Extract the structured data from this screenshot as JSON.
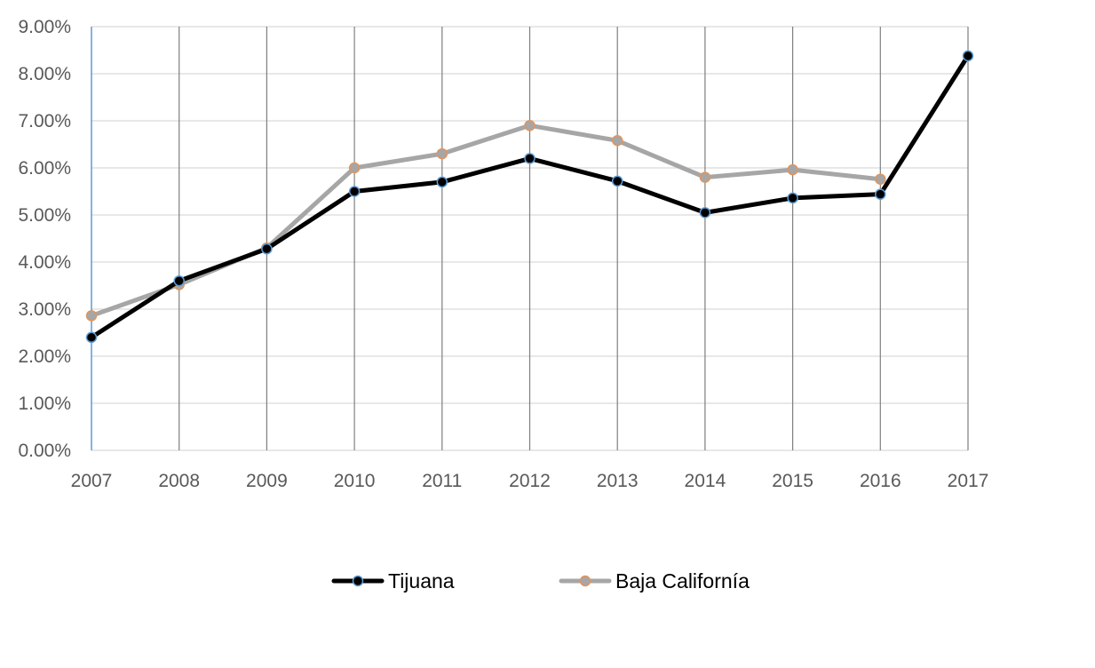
{
  "chart_data": {
    "type": "line",
    "title": "",
    "xlabel": "",
    "ylabel": "",
    "categories": [
      "2007",
      "2008",
      "2009",
      "2010",
      "2011",
      "2012",
      "2013",
      "2014",
      "2015",
      "2016",
      "2017"
    ],
    "y_ticks": [
      "0.00%",
      "1.00%",
      "2.00%",
      "3.00%",
      "4.00%",
      "5.00%",
      "6.00%",
      "7.00%",
      "8.00%",
      "9.00%"
    ],
    "ylim": [
      0,
      9
    ],
    "y_unit": "percent",
    "grid": {
      "horizontal": true,
      "vertical": true
    },
    "legend_position": "bottom",
    "series": [
      {
        "name": "Tijuana",
        "values": [
          2.4,
          3.6,
          4.28,
          5.5,
          5.7,
          6.2,
          5.72,
          5.05,
          5.36,
          5.44,
          8.38
        ],
        "line_color": "#000000",
        "marker_fill": "#000000",
        "marker_edge": "#5b9bd5"
      },
      {
        "name": "Baja California",
        "values": [
          2.86,
          3.52,
          4.3,
          6.0,
          6.3,
          6.9,
          6.58,
          5.8,
          5.96,
          5.76,
          null
        ],
        "line_color": "#a6a6a6",
        "marker_fill": "#a6a6a6",
        "marker_edge": "#e0955e"
      }
    ],
    "legend_labels": [
      "Tijuana",
      "Baja Californía"
    ],
    "colors": {
      "grid_horizontal": "#d9d9d9",
      "grid_vertical": "#7f7f7f",
      "y_axis_line": "#5b9bd5",
      "tick_text": "#595959"
    }
  }
}
